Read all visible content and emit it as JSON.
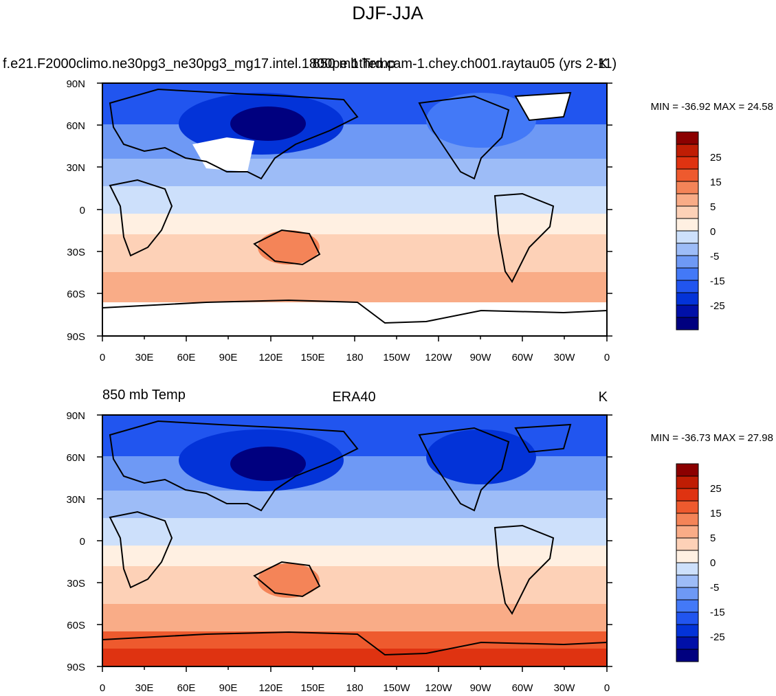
{
  "title": "DJF-JJA",
  "palette": [
    "#00007f",
    "#0010a8",
    "#0333d8",
    "#2155ef",
    "#4379f7",
    "#6e99f5",
    "#9dbcf7",
    "#cde0fb",
    "#fff0e2",
    "#fdd1b7",
    "#f9ac87",
    "#f48458",
    "#ee5a2e",
    "#df3311",
    "#bf1d04",
    "#8b0000"
  ],
  "colorbar": {
    "labels": [
      "25",
      "15",
      "5",
      "0",
      "-5",
      "-15",
      "-25"
    ]
  },
  "lon_labels": [
    "0",
    "30E",
    "60E",
    "90E",
    "120E",
    "150E",
    "180",
    "150W",
    "120W",
    "90W",
    "60W",
    "30W",
    "0"
  ],
  "lat_labels": [
    "90N",
    "60N",
    "30N",
    "0",
    "30S",
    "60S",
    "90S"
  ],
  "panels": [
    {
      "left_title": "f.e21.F2000climo.ne30pg3_ne30pg3_mg17.intel.1800pe.1thrd.cam-1.chey.ch001.raytau05 (yrs 2-11)",
      "center_title": "850 mb Temp",
      "right_title": "K",
      "stats": "MIN = -36.92 MAX =  24.58",
      "min": -36.92,
      "max": 24.58
    },
    {
      "left_title": "850 mb Temp",
      "center_title": "ERA40",
      "right_title": "K",
      "stats": "MIN = -36.73 MAX =  27.98",
      "min": -36.73,
      "max": 27.98
    }
  ]
}
